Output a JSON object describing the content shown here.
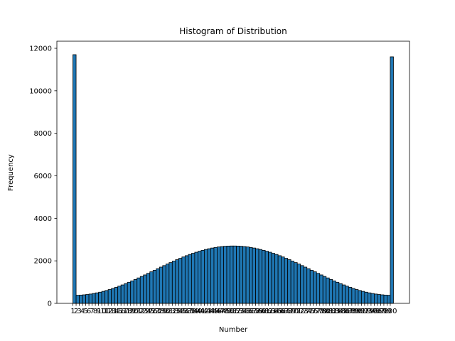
{
  "chart_data": {
    "type": "histogram",
    "title": "Histogram of Distribution",
    "x_label": "Number",
    "y_label": "Frequency",
    "color": "#1f77b4",
    "edgecolor": "#000000",
    "grid": false,
    "bins": [
      1,
      2,
      3,
      4,
      5,
      6,
      7,
      8,
      9,
      10,
      11,
      12,
      13,
      14,
      15,
      16,
      17,
      18,
      19,
      20,
      21,
      22,
      23,
      24,
      25,
      26,
      27,
      28,
      29,
      30,
      31,
      32,
      33,
      34,
      35,
      36,
      37,
      38,
      39,
      40,
      41,
      42,
      43,
      44,
      45,
      46,
      47,
      48,
      49,
      50,
      51,
      52,
      53,
      54,
      55,
      56,
      57,
      58,
      59,
      60,
      61,
      62,
      63,
      64,
      65,
      66,
      67,
      68,
      69,
      70,
      71,
      72,
      73,
      74,
      75,
      76,
      77,
      78,
      79,
      80,
      81,
      82,
      83,
      84,
      85,
      86,
      87,
      88,
      89,
      90,
      91,
      92,
      93,
      94,
      95,
      96,
      97,
      98,
      99,
      100,
      101
    ],
    "values": [
      11700,
      382,
      389,
      401,
      417,
      438,
      464,
      494,
      526,
      564,
      605,
      651,
      700,
      753,
      809,
      867,
      928,
      993,
      1057,
      1125,
      1197,
      1266,
      1338,
      1412,
      1484,
      1559,
      1631,
      1705,
      1777,
      1849,
      1918,
      1988,
      2055,
      2120,
      2183,
      2243,
      2301,
      2354,
      2405,
      2452,
      2496,
      2535,
      2570,
      2603,
      2630,
      2654,
      2672,
      2686,
      2695,
      2699,
      2699,
      2695,
      2686,
      2672,
      2654,
      2630,
      2603,
      2570,
      2535,
      2496,
      2452,
      2405,
      2354,
      2301,
      2243,
      2183,
      2120,
      2055,
      1988,
      1918,
      1849,
      1777,
      1705,
      1631,
      1559,
      1484,
      1412,
      1338,
      1266,
      1197,
      1125,
      1057,
      993,
      928,
      867,
      809,
      753,
      700,
      651,
      605,
      564,
      526,
      494,
      464,
      438,
      417,
      401,
      389,
      382,
      11600
    ],
    "xlim": [
      -4,
      106
    ],
    "xticks": [
      1,
      2,
      3,
      4,
      5,
      6,
      7,
      8,
      9,
      10,
      11,
      12,
      13,
      14,
      15,
      16,
      17,
      18,
      19,
      20,
      21,
      22,
      23,
      24,
      25,
      26,
      27,
      28,
      29,
      30,
      31,
      32,
      33,
      34,
      35,
      36,
      37,
      38,
      39,
      40,
      41,
      42,
      43,
      44,
      45,
      46,
      47,
      48,
      49,
      50,
      51,
      52,
      53,
      54,
      55,
      56,
      57,
      58,
      59,
      60,
      61,
      62,
      63,
      64,
      65,
      66,
      67,
      68,
      69,
      70,
      71,
      72,
      73,
      74,
      75,
      76,
      77,
      78,
      79,
      80,
      81,
      82,
      83,
      84,
      85,
      86,
      87,
      88,
      89,
      90,
      91,
      92,
      93,
      94,
      95,
      96,
      97,
      98,
      99,
      100
    ],
    "ylim": [
      0,
      12334
    ],
    "yticks": [
      0,
      2000,
      4000,
      6000,
      8000,
      10000,
      12000
    ]
  }
}
